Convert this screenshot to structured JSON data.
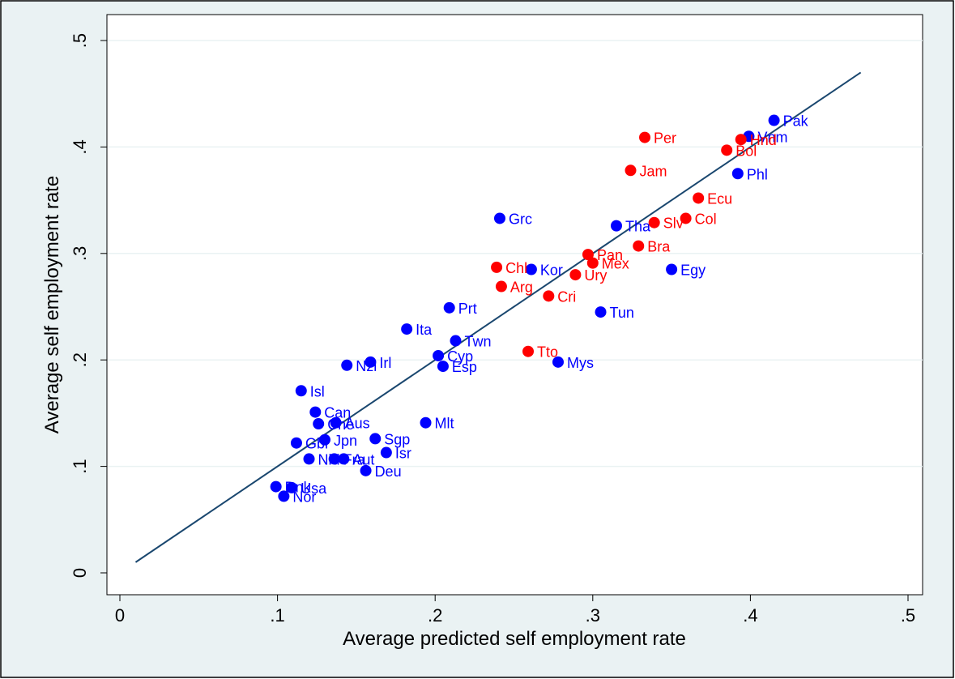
{
  "chart_data": {
    "type": "scatter",
    "title": "",
    "xlabel": "Average predicted self employment rate",
    "ylabel": "Average self employment rate",
    "xlim": [
      0,
      0.5
    ],
    "ylim": [
      0,
      0.5
    ],
    "x_ticks": [
      {
        "value": 0,
        "label": "0"
      },
      {
        "value": 0.1,
        "label": ".1"
      },
      {
        "value": 0.2,
        "label": ".2"
      },
      {
        "value": 0.3,
        "label": ".3"
      },
      {
        "value": 0.4,
        "label": ".4"
      },
      {
        "value": 0.5,
        "label": ".5"
      }
    ],
    "y_ticks": [
      {
        "value": 0,
        "label": "0"
      },
      {
        "value": 0.1,
        "label": ".1"
      },
      {
        "value": 0.2,
        "label": ".2"
      },
      {
        "value": 0.3,
        "label": ".3"
      },
      {
        "value": 0.4,
        "label": ".4"
      },
      {
        "value": 0.5,
        "label": ".5"
      }
    ],
    "grid": true,
    "colors": {
      "blue_group": "#0000ff",
      "red_group": "#ff0000",
      "fit_line": "#1a476f",
      "background": "#eaf2f3"
    },
    "fit_line": {
      "x": [
        0.01,
        0.47
      ],
      "y": [
        0.01,
        0.47
      ]
    },
    "series": [
      {
        "color": "#0000ff",
        "points": [
          {
            "label": "Pak",
            "x": 0.415,
            "y": 0.425
          },
          {
            "label": "Vnm",
            "x": 0.399,
            "y": 0.41
          },
          {
            "label": "Phl",
            "x": 0.392,
            "y": 0.375
          },
          {
            "label": "Grc",
            "x": 0.241,
            "y": 0.333
          },
          {
            "label": "Tha",
            "x": 0.315,
            "y": 0.326
          },
          {
            "label": "Kor",
            "x": 0.261,
            "y": 0.285
          },
          {
            "label": "Egy",
            "x": 0.35,
            "y": 0.285
          },
          {
            "label": "Prt",
            "x": 0.209,
            "y": 0.249
          },
          {
            "label": "Tun",
            "x": 0.305,
            "y": 0.245
          },
          {
            "label": "Ita",
            "x": 0.182,
            "y": 0.229
          },
          {
            "label": "Twn",
            "x": 0.213,
            "y": 0.218
          },
          {
            "label": "Cyp",
            "x": 0.202,
            "y": 0.204
          },
          {
            "label": "Irl",
            "x": 0.159,
            "y": 0.198
          },
          {
            "label": "Nzl",
            "x": 0.144,
            "y": 0.195
          },
          {
            "label": "Esp",
            "x": 0.205,
            "y": 0.194
          },
          {
            "label": "Mys",
            "x": 0.278,
            "y": 0.198
          },
          {
            "label": "Isl",
            "x": 0.115,
            "y": 0.171
          },
          {
            "label": "Can",
            "x": 0.124,
            "y": 0.151
          },
          {
            "label": "Aus",
            "x": 0.137,
            "y": 0.141
          },
          {
            "label": "Che",
            "x": 0.126,
            "y": 0.14
          },
          {
            "label": "Mlt",
            "x": 0.194,
            "y": 0.141
          },
          {
            "label": "Sgp",
            "x": 0.162,
            "y": 0.126
          },
          {
            "label": "Jpn",
            "x": 0.13,
            "y": 0.125
          },
          {
            "label": "Gbr",
            "x": 0.112,
            "y": 0.122
          },
          {
            "label": "Isr",
            "x": 0.169,
            "y": 0.113
          },
          {
            "label": "Nld",
            "x": 0.12,
            "y": 0.107
          },
          {
            "label": "Fra",
            "x": 0.136,
            "y": 0.107
          },
          {
            "label": "Aut",
            "x": 0.142,
            "y": 0.107
          },
          {
            "label": "Deu",
            "x": 0.156,
            "y": 0.096
          },
          {
            "label": "Dnk",
            "x": 0.099,
            "y": 0.081
          },
          {
            "label": "Usa",
            "x": 0.109,
            "y": 0.08
          },
          {
            "label": "Nor",
            "x": 0.104,
            "y": 0.072
          }
        ]
      },
      {
        "color": "#ff0000",
        "points": [
          {
            "label": "Per",
            "x": 0.333,
            "y": 0.409
          },
          {
            "label": "Hnd",
            "x": 0.394,
            "y": 0.407
          },
          {
            "label": "Bol",
            "x": 0.385,
            "y": 0.397
          },
          {
            "label": "Jam",
            "x": 0.324,
            "y": 0.378
          },
          {
            "label": "Ecu",
            "x": 0.367,
            "y": 0.352
          },
          {
            "label": "Col",
            "x": 0.359,
            "y": 0.333
          },
          {
            "label": "Slv",
            "x": 0.339,
            "y": 0.329
          },
          {
            "label": "Bra",
            "x": 0.329,
            "y": 0.307
          },
          {
            "label": "Pan",
            "x": 0.297,
            "y": 0.299
          },
          {
            "label": "Mex",
            "x": 0.3,
            "y": 0.291
          },
          {
            "label": "Chl",
            "x": 0.239,
            "y": 0.287
          },
          {
            "label": "Ury",
            "x": 0.289,
            "y": 0.28
          },
          {
            "label": "Arg",
            "x": 0.242,
            "y": 0.269
          },
          {
            "label": "Cri",
            "x": 0.272,
            "y": 0.26
          },
          {
            "label": "Tto",
            "x": 0.259,
            "y": 0.208
          }
        ]
      }
    ]
  }
}
